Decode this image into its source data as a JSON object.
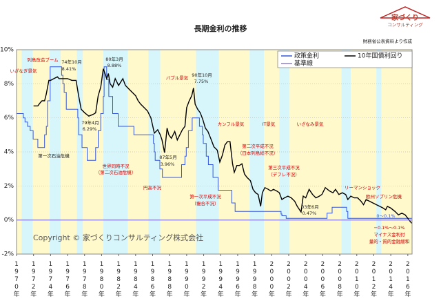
{
  "title": "長期金利の推移",
  "source": "財務省公表資料より作成",
  "logo": {
    "line1": "家づくり",
    "line2": "コンサルティング"
  },
  "copyright": "Copyright © 家づくりコンサルティング株式会社",
  "chart_data": {
    "type": "line",
    "xlim": [
      1970,
      2016.5
    ],
    "ylim": [
      -2,
      10
    ],
    "yticks": [
      {
        "value": -2,
        "label": "-2%"
      },
      {
        "value": 0,
        "label": "0%"
      },
      {
        "value": 2,
        "label": "2%"
      },
      {
        "value": 4,
        "label": "4%"
      },
      {
        "value": 6,
        "label": "6%"
      },
      {
        "value": 8,
        "label": "8%"
      },
      {
        "value": 10,
        "label": "10%"
      }
    ],
    "xticks": [
      {
        "value": 1970,
        "label": "1970年"
      },
      {
        "value": 1972,
        "label": "1972年"
      },
      {
        "value": 1974,
        "label": "1974年"
      },
      {
        "value": 1976,
        "label": "1976年"
      },
      {
        "value": 1978,
        "label": "1978年"
      },
      {
        "value": 1980,
        "label": "1980年"
      },
      {
        "value": 1982,
        "label": "1982年"
      },
      {
        "value": 1984,
        "label": "1984年"
      },
      {
        "value": 1986,
        "label": "1986年"
      },
      {
        "value": 1988,
        "label": "1988年"
      },
      {
        "value": 1990,
        "label": "1990年"
      },
      {
        "value": 1992,
        "label": "1992年"
      },
      {
        "value": 1994,
        "label": "1994年"
      },
      {
        "value": 1996,
        "label": "1996年"
      },
      {
        "value": 1998,
        "label": "1998年"
      },
      {
        "value": 2000,
        "label": "2000年"
      },
      {
        "value": 2002,
        "label": "2002年"
      },
      {
        "value": 2004,
        "label": "2004年"
      },
      {
        "value": 2006,
        "label": "2006年"
      },
      {
        "value": 2008,
        "label": "2008年"
      },
      {
        "value": 2010,
        "label": "2010年"
      },
      {
        "value": 2012,
        "label": "2012年"
      },
      {
        "value": 2014,
        "label": "2014年"
      },
      {
        "value": 2016,
        "label": "2016年"
      }
    ],
    "grid": true,
    "legend": "upper right",
    "bands": [
      {
        "from": 1970,
        "to": 1970.6,
        "color": "#fff9cc"
      },
      {
        "from": 1970.6,
        "to": 1971.9,
        "color": "#d6f6fb"
      },
      {
        "from": 1971.9,
        "to": 1973.9,
        "color": "#fff9cc"
      },
      {
        "from": 1973.9,
        "to": 1975.2,
        "color": "#d6f6fb"
      },
      {
        "from": 1975.2,
        "to": 1977.1,
        "color": "#fff9cc"
      },
      {
        "from": 1977.1,
        "to": 1977.8,
        "color": "#d6f6fb"
      },
      {
        "from": 1977.8,
        "to": 1980.2,
        "color": "#fff9cc"
      },
      {
        "from": 1980.2,
        "to": 1983.1,
        "color": "#d6f6fb"
      },
      {
        "from": 1983.1,
        "to": 1985.5,
        "color": "#fff9cc"
      },
      {
        "from": 1985.5,
        "to": 1986.9,
        "color": "#d6f6fb"
      },
      {
        "from": 1986.9,
        "to": 1991.1,
        "color": "#fff9cc"
      },
      {
        "from": 1991.1,
        "to": 1993.8,
        "color": "#d6f6fb"
      },
      {
        "from": 1993.8,
        "to": 1997.4,
        "color": "#fff9cc"
      },
      {
        "from": 1997.4,
        "to": 1999.1,
        "color": "#d6f6fb"
      },
      {
        "from": 1999.1,
        "to": 2000.9,
        "color": "#fff9cc"
      },
      {
        "from": 2000.9,
        "to": 2002.1,
        "color": "#d6f6fb"
      },
      {
        "from": 2002.1,
        "to": 2008.2,
        "color": "#fff9cc"
      },
      {
        "from": 2008.2,
        "to": 2009.3,
        "color": "#d6f6fb"
      },
      {
        "from": 2009.3,
        "to": 2012.3,
        "color": "#fff9cc"
      },
      {
        "from": 2012.3,
        "to": 2012.9,
        "color": "#d6f6fb"
      },
      {
        "from": 2012.9,
        "to": 2016.5,
        "color": "#fff9cc"
      }
    ],
    "series": [
      {
        "name": "政策金利",
        "color": "#3355dd",
        "step": true,
        "x": [
          1970.0,
          1970.8,
          1971.0,
          1971.3,
          1971.6,
          1971.95,
          1972.5,
          1973.3,
          1973.5,
          1973.65,
          1973.95,
          1975.3,
          1975.45,
          1975.6,
          1975.85,
          1977.2,
          1977.3,
          1977.7,
          1978.3,
          1979.3,
          1979.6,
          1979.9,
          1980.2,
          1980.3,
          1980.6,
          1980.85,
          1981.3,
          1981.95,
          1983.8,
          1986.1,
          1986.2,
          1986.3,
          1986.85,
          1987.15,
          1989.4,
          1989.8,
          1989.95,
          1990.2,
          1990.65,
          1991.5,
          1991.85,
          1991.95,
          1992.3,
          1992.55,
          1993.1,
          1993.7,
          1995.3,
          1995.7,
          2001.1,
          2001.2,
          2001.7,
          2006.5,
          2007.1,
          2008.8,
          2008.95
        ],
        "values": [
          6.25,
          6.0,
          5.75,
          5.5,
          5.25,
          4.75,
          4.25,
          5.0,
          5.5,
          7.0,
          9.0,
          8.5,
          8.0,
          7.5,
          6.5,
          6.0,
          5.0,
          4.25,
          3.5,
          4.25,
          5.25,
          6.25,
          7.25,
          9.0,
          8.25,
          7.25,
          6.25,
          5.5,
          5.0,
          4.5,
          4.0,
          3.5,
          3.0,
          2.5,
          3.25,
          3.75,
          4.25,
          5.25,
          6.0,
          5.5,
          5.0,
          4.5,
          3.75,
          3.25,
          2.5,
          1.75,
          1.0,
          0.5,
          0.35,
          0.25,
          0.1,
          0.4,
          0.75,
          0.5,
          0.1
        ]
      },
      {
        "name": "10年国債利回り",
        "color": "#000000",
        "x": [
          1972.0,
          1972.5,
          1972.8,
          1973.0,
          1973.3,
          1973.5,
          1973.8,
          1974.0,
          1974.8,
          1975.0,
          1975.5,
          1976.0,
          1976.5,
          1977.0,
          1977.3,
          1977.6,
          1978.0,
          1978.5,
          1979.0,
          1979.3,
          1979.6,
          1979.9,
          1980.2,
          1980.4,
          1980.6,
          1980.8,
          1981.0,
          1981.3,
          1981.6,
          1982.0,
          1982.5,
          1982.8,
          1983.2,
          1983.6,
          1984.0,
          1984.3,
          1984.6,
          1985.0,
          1985.4,
          1985.8,
          1986.2,
          1986.6,
          1986.9,
          1987.1,
          1987.4,
          1987.7,
          1987.9,
          1988.2,
          1988.6,
          1988.9,
          1989.2,
          1989.5,
          1989.8,
          1990.0,
          1990.3,
          1990.6,
          1990.8,
          1991.0,
          1991.3,
          1991.6,
          1991.9,
          1992.2,
          1992.5,
          1992.9,
          1993.2,
          1993.6,
          1993.9,
          1994.2,
          1994.5,
          1994.8,
          1995.1,
          1995.4,
          1995.6,
          1995.9,
          1996.2,
          1996.5,
          1996.8,
          1997.1,
          1997.5,
          1997.8,
          1998.1,
          1998.4,
          1998.7,
          1998.9,
          1999.2,
          1999.6,
          1999.9,
          2000.2,
          2000.6,
          2000.9,
          2001.2,
          2001.5,
          2001.9,
          2002.3,
          2002.7,
          2003.0,
          2003.45,
          2003.7,
          2004.0,
          2004.4,
          2004.8,
          2005.2,
          2005.6,
          2005.9,
          2006.3,
          2006.8,
          2007.2,
          2007.5,
          2007.9,
          2008.3,
          2008.7,
          2008.95,
          2009.3,
          2009.7,
          2010.1,
          2010.5,
          2010.8,
          2011.1,
          2011.5,
          2011.9,
          2012.3,
          2012.7,
          2013.1,
          2013.4,
          2013.6,
          2014.0,
          2014.5,
          2014.9,
          2015.3,
          2015.7,
          2016.0,
          2016.3,
          2016.5
        ],
        "values": [
          6.7,
          6.7,
          6.9,
          7.0,
          7.0,
          7.4,
          8.2,
          8.2,
          8.41,
          8.3,
          8.3,
          8.3,
          8.2,
          8.2,
          7.3,
          6.5,
          6.3,
          6.1,
          6.2,
          6.29,
          7.3,
          7.8,
          8.88,
          8.6,
          8.3,
          8.6,
          8.0,
          7.8,
          8.3,
          7.9,
          8.3,
          7.9,
          7.7,
          7.5,
          7.3,
          7.0,
          6.8,
          6.6,
          6.4,
          6.0,
          5.1,
          5.3,
          5.0,
          4.7,
          3.96,
          5.4,
          5.0,
          4.8,
          5.2,
          4.7,
          5.0,
          5.3,
          5.5,
          6.6,
          7.0,
          7.3,
          7.75,
          6.8,
          6.5,
          6.3,
          5.9,
          5.4,
          5.2,
          4.7,
          4.3,
          4.1,
          3.4,
          3.8,
          4.4,
          4.6,
          4.6,
          3.3,
          2.8,
          3.2,
          3.2,
          3.3,
          2.7,
          2.5,
          2.3,
          1.8,
          1.6,
          1.5,
          0.8,
          1.6,
          1.9,
          1.8,
          1.7,
          1.8,
          1.7,
          1.6,
          1.2,
          1.3,
          1.4,
          1.3,
          1.1,
          0.8,
          0.47,
          1.4,
          1.3,
          1.8,
          1.5,
          1.3,
          1.4,
          1.5,
          1.9,
          1.7,
          1.6,
          1.8,
          1.5,
          1.6,
          1.5,
          1.2,
          1.4,
          1.3,
          1.3,
          1.1,
          0.9,
          1.2,
          1.1,
          1.0,
          0.9,
          0.8,
          0.7,
          0.6,
          0.8,
          0.7,
          0.5,
          0.3,
          0.4,
          0.3,
          0.1,
          -0.1,
          -0.2
        ]
      },
      {
        "name": "基準線",
        "color": "#8a7fd0",
        "x": [
          1970,
          2016.5
        ],
        "values": [
          0,
          0
        ]
      }
    ],
    "annotations": [
      {
        "text": "いざなぎ景気",
        "color": "#cc0000"
      },
      {
        "text": "列島改造ブーム",
        "color": "#cc0000"
      },
      {
        "text": "74年10月",
        "color": "#222"
      },
      {
        "text": "8.41%",
        "color": "#222"
      },
      {
        "text": "79年4月",
        "color": "#222"
      },
      {
        "text": "6.29%",
        "color": "#222"
      },
      {
        "text": "80年3月",
        "color": "#222"
      },
      {
        "text": "8.88%",
        "color": "#222"
      },
      {
        "text": "第一次石油危機",
        "color": "#222"
      },
      {
        "text": "世界同時不況",
        "color": "#cc0000"
      },
      {
        "text": "（第二次石油危機）",
        "color": "#cc0000"
      },
      {
        "text": "円高不況",
        "color": "#cc0000"
      },
      {
        "text": "バブル景気",
        "color": "#cc0000"
      },
      {
        "text": "87年5月",
        "color": "#222"
      },
      {
        "text": "3.96%",
        "color": "#222"
      },
      {
        "text": "90年10月",
        "color": "#222"
      },
      {
        "text": "7.75%",
        "color": "#222"
      },
      {
        "text": "カンフル景気",
        "color": "#cc0000"
      },
      {
        "text": "第一次平成不況",
        "color": "#cc0000"
      },
      {
        "text": "（複合不況）",
        "color": "#cc0000"
      },
      {
        "text": "第二次平成不況",
        "color": "#cc0000"
      },
      {
        "text": "（日本列島総不況）",
        "color": "#cc0000"
      },
      {
        "text": "IT景気",
        "color": "#cc0000"
      },
      {
        "text": "第三次平成不況",
        "color": "#cc0000"
      },
      {
        "text": "（デフレ不況）",
        "color": "#cc0000"
      },
      {
        "text": "いざなみ景気",
        "color": "#cc0000"
      },
      {
        "text": "03年6月",
        "color": "#222"
      },
      {
        "text": "0.47%",
        "color": "#222"
      },
      {
        "text": "リーマンショック",
        "color": "#cc0000"
      },
      {
        "text": "欧州ソブリン危機",
        "color": "#cc0000"
      },
      {
        "text": "0～0.1%",
        "color": "#3355dd"
      },
      {
        "text": "−0.1%～0.1%",
        "color": "#cc0000"
      },
      {
        "text": "マイナス金利付",
        "color": "#cc0000"
      },
      {
        "text": "量的・質的金融緩和",
        "color": "#cc0000"
      }
    ]
  }
}
